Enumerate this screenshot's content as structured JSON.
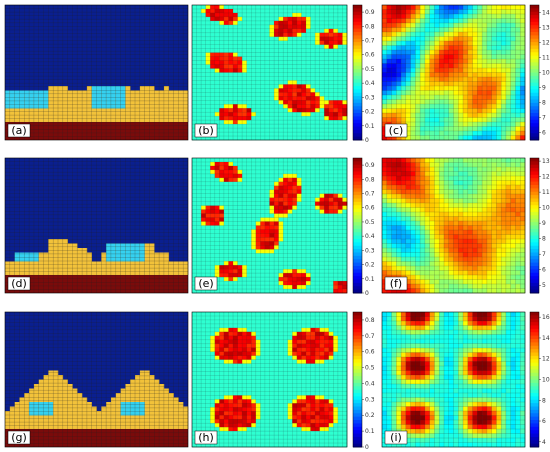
{
  "colors": {
    "background": "#ffffff",
    "navy": "#0a1f8f",
    "cyan": "#35d1f0",
    "gold": "#f2c23a",
    "maroon": "#7a0b0b",
    "grid": "#222222"
  },
  "chart_data": [
    {
      "panel": "(a)",
      "type": "heatmap",
      "description": "2D cross-section: maroon substrate, gold and cyan phases, navy above",
      "phases": [
        "gold",
        "cyan"
      ]
    },
    {
      "panel": "(b)",
      "type": "heatmap",
      "colorbar": {
        "ticks": [
          "0",
          "0.1",
          "0.2",
          "0.3",
          "0.4",
          "0.5",
          "0.6",
          "0.7",
          "0.8",
          "0.9"
        ],
        "range": [
          0,
          0.95
        ]
      }
    },
    {
      "panel": "(c)",
      "type": "heatmap",
      "colorbar": {
        "ticks": [
          "6",
          "7",
          "8",
          "9",
          "10",
          "11",
          "12",
          "13",
          "14"
        ],
        "range": [
          5.5,
          14.5
        ]
      }
    },
    {
      "panel": "(d)",
      "type": "heatmap",
      "description": "2D cross-section: maroon substrate, gold and cyan phases, navy above",
      "phases": [
        "gold",
        "cyan"
      ]
    },
    {
      "panel": "(e)",
      "type": "heatmap",
      "colorbar": {
        "ticks": [
          "0",
          "0.1",
          "0.2",
          "0.3",
          "0.4",
          "0.5",
          "0.6",
          "0.7",
          "0.8",
          "0.9"
        ],
        "range": [
          0,
          0.95
        ]
      }
    },
    {
      "panel": "(f)",
      "type": "heatmap",
      "colorbar": {
        "ticks": [
          "5",
          "6",
          "7",
          "8",
          "9",
          "10",
          "11",
          "12",
          "13"
        ],
        "range": [
          4.5,
          13.2
        ]
      }
    },
    {
      "panel": "(g)",
      "type": "heatmap",
      "description": "2D cross-section: maroon substrate, gold and cyan phases, navy above",
      "phases": [
        "gold",
        "cyan"
      ]
    },
    {
      "panel": "(h)",
      "type": "heatmap",
      "colorbar": {
        "ticks": [
          "0",
          "0.1",
          "0.2",
          "0.3",
          "0.4",
          "0.5",
          "0.6",
          "0.7",
          "0.8"
        ],
        "range": [
          0,
          0.85
        ]
      }
    },
    {
      "panel": "(i)",
      "type": "heatmap",
      "colorbar": {
        "ticks": [
          "4",
          "6",
          "8",
          "10",
          "12",
          "14",
          "16"
        ],
        "range": [
          3.5,
          16.5
        ]
      }
    }
  ]
}
